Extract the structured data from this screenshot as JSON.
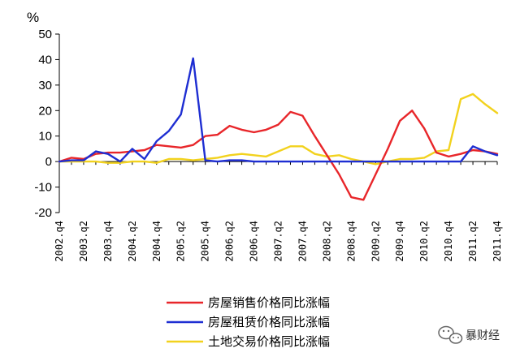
{
  "chart_data": {
    "type": "line",
    "unit_label": "%",
    "ylim": [
      -20,
      50
    ],
    "y_ticks": [
      "50",
      "40",
      "30",
      "20",
      "10",
      "0",
      "-10",
      "-20"
    ],
    "x_tick_labels": [
      "2002.q4",
      "2003.q2",
      "2003.q4",
      "2004.q2",
      "2004.q4",
      "2005.q2",
      "2005.q4",
      "2006.q2",
      "2006.q4",
      "2007.q2",
      "2007.q4",
      "2008.q2",
      "2008.q4",
      "2009.q2",
      "2009.q4",
      "2010.q2",
      "2010.q4",
      "2011.q2",
      "2011.q4"
    ],
    "x": [
      "2002.q4",
      "2003.q1",
      "2003.q2",
      "2003.q3",
      "2003.q4",
      "2004.q1",
      "2004.q2",
      "2004.q3",
      "2004.q4",
      "2005.q1",
      "2005.q2",
      "2005.q3",
      "2005.q4",
      "2006.q1",
      "2006.q2",
      "2006.q3",
      "2006.q4",
      "2007.q1",
      "2007.q2",
      "2007.q3",
      "2007.q4",
      "2008.q1",
      "2008.q2",
      "2008.q3",
      "2008.q4",
      "2009.q1",
      "2009.q2",
      "2009.q3",
      "2009.q4",
      "2010.q1",
      "2010.q2",
      "2010.q3",
      "2010.q4",
      "2011.q1",
      "2011.q2",
      "2011.q3",
      "2011.q4"
    ],
    "series": [
      {
        "name": "房屋销售价格同比涨幅",
        "color": "#e8262a",
        "values": [
          0,
          1.5,
          1,
          3,
          3.5,
          3.5,
          4,
          4.5,
          6.5,
          6,
          5.5,
          6.5,
          10,
          10.5,
          14,
          12.5,
          11.5,
          12.5,
          14.5,
          19.5,
          18,
          10,
          2.5,
          -5,
          -14,
          -15,
          -5,
          5,
          16,
          20,
          13,
          3.5,
          2,
          3,
          4.5,
          4,
          3
        ]
      },
      {
        "name": "房屋租赁价格同比涨幅",
        "color": "#1e2ed2",
        "values": [
          0,
          0.5,
          0.5,
          4,
          3,
          0,
          5,
          1,
          8,
          12,
          18.5,
          40.5,
          0.5,
          0,
          0.5,
          0.5,
          0,
          0,
          0,
          0,
          0,
          0,
          0,
          0,
          0,
          0,
          0,
          0,
          0,
          0,
          0,
          0,
          0,
          0,
          6,
          4,
          2.5
        ]
      },
      {
        "name": "土地交易价格同比涨幅",
        "color": "#f2d21e",
        "values": [
          0,
          0,
          0,
          0,
          -0.5,
          -0.5,
          0,
          0,
          -0.5,
          1,
          1,
          0.5,
          1,
          1.5,
          2.5,
          3,
          2.5,
          2,
          4,
          6,
          6,
          3,
          2,
          2.5,
          1,
          0,
          -1,
          0,
          1,
          1,
          1.5,
          4,
          4.5,
          24.5,
          26.5,
          22.5,
          19
        ]
      }
    ],
    "legend_placement": "bottom"
  },
  "watermark": {
    "icon": "wechat-icon",
    "text": "暴财经"
  }
}
